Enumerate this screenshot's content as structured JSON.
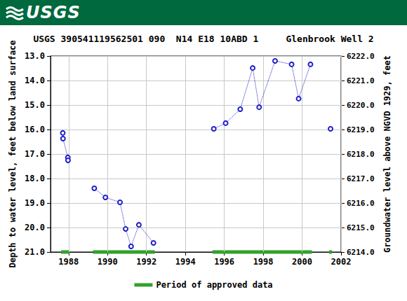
{
  "header": {
    "logo_text": "USGS"
  },
  "chart_data": {
    "type": "line",
    "title": "USGS 390541119562501 090  N14 E18 10ABD 1     Glenbrook Well 2",
    "ylabel": "Depth to water level, feet below land surface",
    "y2label": "Groundwater level above NGVD 1929, feet",
    "xlim": [
      1987.07,
      2002
    ],
    "xticks": [
      1988,
      1990,
      1992,
      1994,
      1996,
      1998,
      2000,
      2002
    ],
    "ylim": [
      21,
      13
    ],
    "yticks": [
      {
        "value": 13,
        "label": "13.0"
      },
      {
        "value": 14,
        "label": "14.0"
      },
      {
        "value": 15,
        "label": "15.0"
      },
      {
        "value": 16,
        "label": "16.0"
      },
      {
        "value": 17,
        "label": "17.0"
      },
      {
        "value": 18,
        "label": "18.0"
      },
      {
        "value": 19,
        "label": "19.0"
      },
      {
        "value": 20,
        "label": "20.0"
      },
      {
        "value": 21,
        "label": "21.0"
      }
    ],
    "y2lim": [
      6214,
      6222
    ],
    "y2ticks": [
      {
        "value": 6214,
        "label": "6214.0"
      },
      {
        "value": 6215,
        "label": "6215.0"
      },
      {
        "value": 6216,
        "label": "6216.0"
      },
      {
        "value": 6217,
        "label": "6217.0"
      },
      {
        "value": 6218,
        "label": "6218.0"
      },
      {
        "value": 6219,
        "label": "6219.0"
      },
      {
        "value": 6220,
        "label": "6220.0"
      },
      {
        "value": 6221,
        "label": "6221.0"
      },
      {
        "value": 6222,
        "label": "6222.0"
      }
    ],
    "x": [
      1987.7,
      1987.71,
      1987.96,
      1987.97,
      null,
      1989.32,
      1989.89,
      1990.64,
      1990.93,
      1991.21,
      1991.61,
      1992.36,
      null,
      1995.46,
      1996.07,
      1996.82,
      1997.46,
      1997.79,
      1998.61,
      1999.46,
      1999.82,
      2000.43,
      null,
      2001.46
    ],
    "values": [
      16.14,
      16.37,
      17.14,
      17.26,
      null,
      18.4,
      18.77,
      18.97,
      20.06,
      20.77,
      19.89,
      20.63,
      null,
      15.97,
      15.74,
      15.17,
      13.49,
      15.09,
      13.2,
      13.34,
      14.74,
      13.34,
      null,
      15.97
    ],
    "color": "#2020c8",
    "marker": "circle-open",
    "line_style": "dotted",
    "grid": true,
    "legend": "bottom",
    "approved_label": "Period of approved data",
    "approved_color": "#33a02c",
    "approved_periods": [
      [
        1987.61,
        1988.04
      ],
      [
        1989.25,
        1992.43
      ],
      [
        1995.39,
        2000.5
      ],
      [
        2001.39,
        2001.54
      ]
    ]
  }
}
